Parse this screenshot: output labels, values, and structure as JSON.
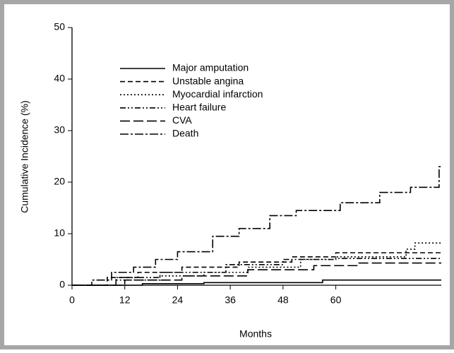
{
  "chart_data": {
    "type": "line",
    "ylabel": "Cumulative Incidence (%)",
    "xlabel": "Months",
    "xlim": [
      0,
      84
    ],
    "xticks": [
      0,
      12,
      24,
      36,
      48,
      60
    ],
    "ylim": [
      0,
      50
    ],
    "yticks": [
      0,
      10,
      20,
      30,
      40,
      50
    ],
    "series": [
      {
        "name": "Major amputation",
        "color": "#000000",
        "dash": "none",
        "x": [
          0,
          16,
          16,
          30,
          30,
          57,
          57,
          84
        ],
        "values": [
          0,
          0,
          0.3,
          0.3,
          0.5,
          0.5,
          1,
          1
        ]
      },
      {
        "name": "Unstable angina",
        "color": "#000000",
        "dash": "7,4",
        "x": [
          0,
          8,
          8,
          15,
          15,
          25,
          25,
          38,
          38,
          50,
          50,
          60,
          60,
          84
        ],
        "values": [
          0,
          0,
          1.5,
          1.5,
          2.5,
          2.5,
          3.5,
          3.5,
          4.5,
          4.5,
          5.5,
          5.5,
          6.3,
          6.3
        ]
      },
      {
        "name": "Myocardial infarction",
        "color": "#000000",
        "dash": "2,3",
        "x": [
          0,
          10,
          10,
          20,
          20,
          30,
          30,
          40,
          40,
          52,
          52,
          60,
          60,
          76,
          76,
          78,
          78,
          84
        ],
        "values": [
          0,
          0,
          1,
          1,
          1.8,
          1.8,
          2.5,
          2.5,
          3.5,
          3.5,
          5,
          5,
          5.5,
          5.5,
          7,
          7,
          8.2,
          8.2
        ]
      },
      {
        "name": "Heart failure",
        "color": "#000000",
        "dash": "8,3,2,3,2,3",
        "x": [
          0,
          10,
          10,
          20,
          20,
          35,
          35,
          48,
          48,
          60,
          60,
          84
        ],
        "values": [
          0,
          0,
          1.5,
          1.5,
          2.5,
          2.5,
          4,
          4,
          5,
          5,
          5.2,
          5.2
        ]
      },
      {
        "name": "CVA",
        "color": "#000000",
        "dash": "14,5",
        "x": [
          0,
          12,
          12,
          25,
          25,
          40,
          40,
          55,
          55,
          65,
          65,
          84
        ],
        "values": [
          0,
          0,
          1,
          1,
          1.8,
          1.8,
          3,
          3,
          3.8,
          3.8,
          4.3,
          4.3
        ]
      },
      {
        "name": "Death",
        "color": "#000000",
        "dash": "12,3,3,3",
        "x": [
          0,
          4.5,
          4.5,
          9,
          9,
          14,
          14,
          19,
          19,
          24,
          24,
          32,
          32,
          38,
          38,
          45,
          45,
          51,
          51,
          61,
          61,
          70,
          70,
          77,
          77,
          83.5,
          83.5,
          84
        ],
        "values": [
          0,
          0,
          1,
          1,
          2.5,
          2.5,
          3.5,
          3.5,
          5,
          5,
          6.5,
          6.5,
          9.5,
          9.5,
          11,
          11,
          13.5,
          13.5,
          14.5,
          14.5,
          16,
          16,
          18,
          18,
          19,
          19,
          23,
          23
        ]
      }
    ]
  }
}
